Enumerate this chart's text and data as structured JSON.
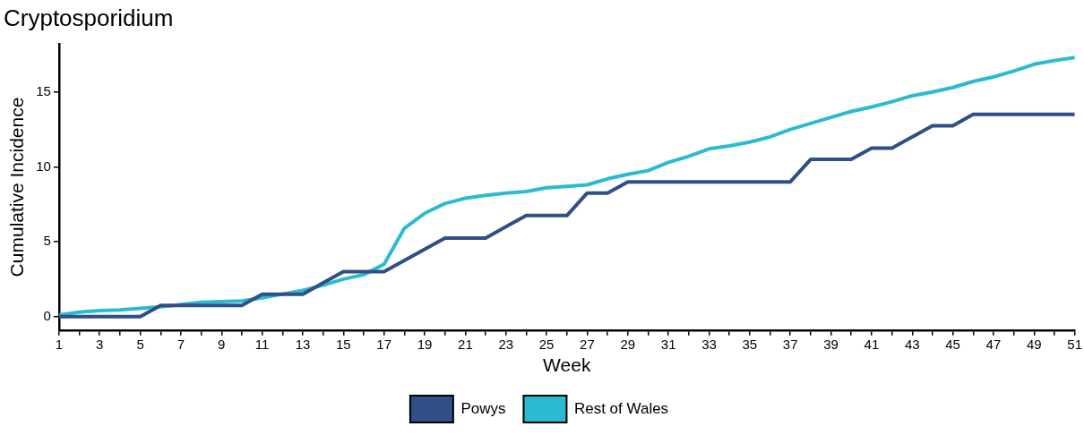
{
  "chart_data": {
    "type": "line",
    "title": "Cryptosporidium",
    "xlabel": "Week",
    "ylabel": "Cumulative Incidence",
    "x": [
      1,
      2,
      3,
      4,
      5,
      6,
      7,
      8,
      9,
      10,
      11,
      12,
      13,
      14,
      15,
      16,
      17,
      18,
      19,
      20,
      21,
      22,
      23,
      24,
      25,
      26,
      27,
      28,
      29,
      30,
      31,
      32,
      33,
      34,
      35,
      36,
      37,
      38,
      39,
      40,
      41,
      42,
      43,
      44,
      45,
      46,
      47,
      48,
      49,
      50,
      51
    ],
    "series": [
      {
        "name": "Powys",
        "color": "#2f4f86",
        "values": [
          0,
          0,
          0,
          0,
          0,
          0.75,
          0.75,
          0.75,
          0.75,
          0.75,
          1.5,
          1.5,
          1.5,
          2.25,
          3,
          3,
          3,
          3.75,
          4.5,
          5.25,
          5.25,
          5.25,
          6,
          6.75,
          6.75,
          6.75,
          8.25,
          8.25,
          9,
          9,
          9,
          9,
          9,
          9,
          9,
          9,
          9,
          10.5,
          10.5,
          10.5,
          11.25,
          11.25,
          12,
          12.75,
          12.75,
          13.5,
          13.5,
          13.5,
          13.5,
          13.5,
          13.5
        ]
      },
      {
        "name": "Rest of Wales",
        "color": "#2bbbd0",
        "values": [
          0.1,
          0.3,
          0.4,
          0.45,
          0.55,
          0.65,
          0.8,
          0.95,
          1.0,
          1.05,
          1.25,
          1.5,
          1.75,
          2.1,
          2.5,
          2.8,
          3.5,
          5.9,
          6.9,
          7.55,
          7.9,
          8.1,
          8.25,
          8.35,
          8.6,
          8.7,
          8.8,
          9.2,
          9.5,
          9.75,
          10.3,
          10.7,
          11.2,
          11.4,
          11.65,
          12.0,
          12.5,
          12.9,
          13.3,
          13.7,
          14.0,
          14.35,
          14.75,
          15.0,
          15.3,
          15.7,
          16.0,
          16.4,
          16.85,
          17.1,
          17.3
        ]
      }
    ],
    "xlim": [
      1,
      51
    ],
    "xticks": [
      1,
      {
        "value": 2,
        "label": null
      },
      3,
      {
        "value": 4,
        "label": null
      },
      5,
      {
        "value": 6,
        "label": null
      },
      7,
      {
        "value": 8,
        "label": null
      },
      9,
      {
        "value": 10,
        "label": null
      },
      11,
      {
        "value": 12,
        "label": null
      },
      13,
      {
        "value": 14,
        "label": null
      },
      15,
      {
        "value": 16,
        "label": null
      },
      17,
      {
        "value": 18,
        "label": null
      },
      19,
      {
        "value": 20,
        "label": null
      },
      21,
      {
        "value": 22,
        "label": null
      },
      23,
      {
        "value": 24,
        "label": null
      },
      25,
      {
        "value": 26,
        "label": null
      },
      27,
      {
        "value": 28,
        "label": null
      },
      29,
      {
        "value": 30,
        "label": null
      },
      31,
      {
        "value": 32,
        "label": null
      },
      33,
      {
        "value": 34,
        "label": null
      },
      35,
      {
        "value": 36,
        "label": null
      },
      37,
      {
        "value": 38,
        "label": null
      },
      39,
      {
        "value": 40,
        "label": null
      },
      41,
      {
        "value": 42,
        "label": null
      },
      43,
      {
        "value": 44,
        "label": null
      },
      45,
      {
        "value": 46,
        "label": null
      },
      47,
      {
        "value": 48,
        "label": null
      },
      49,
      {
        "value": 50,
        "label": null
      },
      51
    ],
    "ylim": [
      -0.9,
      18.2
    ],
    "yticks": [
      0,
      5,
      10,
      15
    ],
    "grid": false,
    "legend": "bottom",
    "marker": "none",
    "line_style": "solid"
  }
}
